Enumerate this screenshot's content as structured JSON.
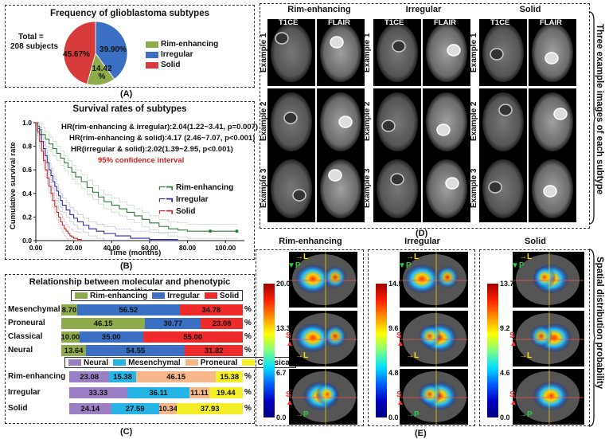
{
  "panelA": {
    "title": "Frequency of glioblastoma subtypes",
    "total_line1": "Total =",
    "total_line2": "208 subjects",
    "caption": "(A)",
    "pie_labels": [
      "39.90%",
      "14.42\n%",
      "45.67%"
    ],
    "legend": [
      "Rim-enhancing",
      "Irregular",
      "Solid"
    ]
  },
  "panelB": {
    "title": "Survival rates of subtypes",
    "hr1": "HR(rim-enhancing & irregular):2.04(1.22~3.41, p=0.007)",
    "hr2": "HR(rim-enhancing & solid):4.17 (2.46~7.07, p<0.001)",
    "hr3": "HR(irregular & solid):2.02(1.39~2.95, p<0.001)",
    "ci": "95% confidence interval",
    "ylabel": "Cumulative survival rate",
    "xlabel": "Time (months)",
    "legend": [
      "Rim-enhancing",
      "Irregular",
      "Solid"
    ],
    "caption": "(B)"
  },
  "panelC": {
    "title": "Relationship between molecular and phenotypic compositions",
    "legend1": [
      "Rim-enhancing",
      "Irregular",
      "Solid"
    ],
    "legend2": [
      "Neural",
      "Mesenchymal",
      "Proneural",
      "Classical"
    ],
    "pct_sign": "%",
    "caption": "(C)"
  },
  "panelD": {
    "groups": [
      "Rim-enhancing",
      "Irregular",
      "Solid"
    ],
    "modalities": [
      "T1CE",
      "FLAIR"
    ],
    "examples": [
      "Example 1",
      "Example 2",
      "Example 3"
    ],
    "side_label": "Three example images of each subtype",
    "caption": "(D)"
  },
  "panelE": {
    "groups": [
      "Rim-enhancing",
      "Irregular",
      "Solid"
    ],
    "colorbars": [
      {
        "ticks": [
          "20.0",
          "13.3",
          "6.7",
          "0.0"
        ]
      },
      {
        "ticks": [
          "14.5",
          "9.6",
          "4.8",
          "0.0"
        ]
      },
      {
        "ticks": [
          "13.7",
          "9.2",
          "4.6",
          "0.0"
        ]
      }
    ],
    "markers": {
      "L": "L",
      "P": "P",
      "S": "S"
    },
    "side_label": "Spatial distribution probability",
    "caption": "(E)"
  },
  "chart_data": [
    {
      "type": "pie",
      "title": "Frequency of glioblastoma subtypes",
      "categories": [
        "Rim-enhancing",
        "Irregular",
        "Solid"
      ],
      "values": [
        14.42,
        39.9,
        45.67
      ],
      "colors": [
        "#8fac4c",
        "#3a6fc4",
        "#d63a3a"
      ]
    },
    {
      "type": "line",
      "title": "Survival rates of subtypes",
      "xlabel": "Time (months)",
      "ylabel": "Cumulative survival rate",
      "xlim": [
        0,
        110
      ],
      "ylim": [
        0,
        1.0
      ],
      "xticks": [
        "0.00",
        "20.00",
        "40.00",
        "60.00",
        "80.00",
        "100.00"
      ],
      "yticks": [
        "0.0",
        "0.2",
        "0.4",
        "0.6",
        "0.8",
        "1.0"
      ],
      "series": [
        {
          "name": "Rim-enhancing",
          "color": "#2e7d32",
          "x": [
            0,
            1,
            2,
            3,
            5,
            7,
            9,
            11,
            13,
            15,
            17,
            19,
            21,
            24,
            27,
            30,
            33,
            36,
            40,
            44,
            48,
            52,
            56,
            60,
            65,
            70,
            75,
            80,
            92,
            106
          ],
          "y": [
            1.0,
            0.97,
            0.94,
            0.9,
            0.86,
            0.82,
            0.78,
            0.74,
            0.7,
            0.66,
            0.62,
            0.58,
            0.54,
            0.5,
            0.45,
            0.41,
            0.37,
            0.33,
            0.3,
            0.27,
            0.24,
            0.21,
            0.18,
            0.15,
            0.12,
            0.1,
            0.09,
            0.08,
            0.08,
            0.08
          ]
        },
        {
          "name": "Irregular",
          "color": "#2a2aa8",
          "x": [
            0,
            1,
            2,
            3,
            4,
            5,
            6,
            7,
            8,
            9,
            10,
            11,
            12,
            13,
            14,
            16,
            18,
            20,
            22,
            25,
            28,
            32,
            36,
            42,
            50,
            60,
            75
          ],
          "y": [
            1.0,
            0.95,
            0.9,
            0.84,
            0.78,
            0.72,
            0.66,
            0.6,
            0.55,
            0.5,
            0.46,
            0.42,
            0.38,
            0.34,
            0.3,
            0.26,
            0.22,
            0.19,
            0.16,
            0.13,
            0.1,
            0.08,
            0.06,
            0.04,
            0.02,
            0.01,
            0.01
          ]
        },
        {
          "name": "Solid",
          "color": "#c62828",
          "x": [
            0,
            1,
            2,
            3,
            4,
            5,
            6,
            7,
            8,
            9,
            10,
            11,
            12,
            13,
            14,
            15,
            16,
            17,
            18,
            19,
            20,
            22,
            24
          ],
          "y": [
            1.0,
            0.92,
            0.84,
            0.76,
            0.68,
            0.6,
            0.53,
            0.46,
            0.4,
            0.34,
            0.29,
            0.24,
            0.2,
            0.16,
            0.13,
            0.1,
            0.08,
            0.06,
            0.04,
            0.03,
            0.02,
            0.01,
            0.0
          ]
        }
      ]
    },
    {
      "type": "bar",
      "title": "Relationship between molecular and phenotypic compositions",
      "stacked": true,
      "categories": [
        "Mesenchymal",
        "Proneural",
        "Classical",
        "Neural"
      ],
      "series": [
        {
          "name": "Rim-enhancing",
          "color": "#8fac4c",
          "values": [
            8.7,
            46.15,
            10.0,
            13.64
          ]
        },
        {
          "name": "Irregular",
          "color": "#3a6fc4",
          "values": [
            56.52,
            30.77,
            35.0,
            54.55
          ]
        },
        {
          "name": "Solid",
          "color": "#ee2a2a",
          "values": [
            34.78,
            23.08,
            55.0,
            31.82
          ]
        }
      ],
      "labels": [
        [
          "8.70",
          "56.52",
          "34.78"
        ],
        [
          "46.15",
          "30.77",
          "23.08"
        ],
        [
          "10.00",
          "35.00",
          "55.00"
        ],
        [
          "13.64",
          "54.55",
          "31.82"
        ]
      ]
    },
    {
      "type": "bar",
      "stacked": true,
      "categories": [
        "Rim-enhancing",
        "Irregular",
        "Solid"
      ],
      "series": [
        {
          "name": "Neural",
          "color": "#9b7fc4",
          "values": [
            23.08,
            33.33,
            24.14
          ]
        },
        {
          "name": "Mesenchymal",
          "color": "#26b3e6",
          "values": [
            15.38,
            36.11,
            27.59
          ]
        },
        {
          "name": "Proneural",
          "color": "#f6b88a",
          "values": [
            46.15,
            11.11,
            10.34
          ]
        },
        {
          "name": "Classical",
          "color": "#f5ef2a",
          "values": [
            15.38,
            19.44,
            37.93
          ]
        }
      ],
      "labels": [
        [
          "23.08",
          "15.38",
          "46.15",
          "15.38"
        ],
        [
          "33.33",
          "36.11",
          "11.11",
          "19.44"
        ],
        [
          "24.14",
          "27.59",
          "10.34",
          "37.93"
        ]
      ]
    }
  ]
}
